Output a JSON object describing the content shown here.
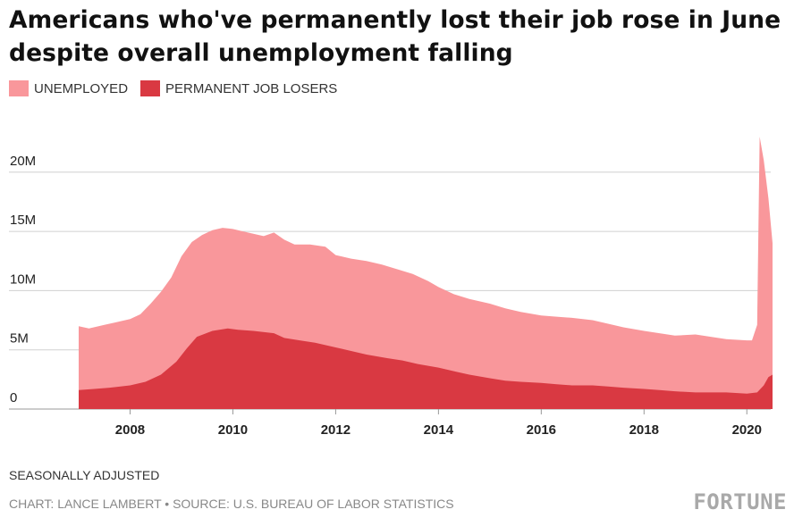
{
  "chart_data": {
    "type": "area",
    "title": "Americans who've permanently lost their job rose in June despite overall unemployment falling",
    "note": "SEASONALLY ADJUSTED",
    "source": "CHART: LANCE LAMBERT • SOURCE: U.S. BUREAU OF LABOR STATISTICS",
    "brand": "FORTUNE",
    "xlim": [
      2007,
      2020.5
    ],
    "ylim": [
      0,
      23
    ],
    "x_ticks": [
      {
        "value": 2008,
        "label": "2008"
      },
      {
        "value": 2010,
        "label": "2010"
      },
      {
        "value": 2012,
        "label": "2012"
      },
      {
        "value": 2014,
        "label": "2014"
      },
      {
        "value": 2016,
        "label": "2016"
      },
      {
        "value": 2018,
        "label": "2018"
      },
      {
        "value": 2020,
        "label": "2020"
      }
    ],
    "y_ticks": [
      {
        "value": 0,
        "label": "0"
      },
      {
        "value": 5,
        "label": "5M"
      },
      {
        "value": 10,
        "label": "10M"
      },
      {
        "value": 15,
        "label": "15M"
      },
      {
        "value": 20,
        "label": "20M"
      }
    ],
    "series": [
      {
        "name": "UNEMPLOYED",
        "color": "#f9979b",
        "x": [
          2007.0,
          2007.2,
          2007.5,
          2007.8,
          2008.0,
          2008.2,
          2008.4,
          2008.6,
          2008.8,
          2009.0,
          2009.2,
          2009.4,
          2009.6,
          2009.8,
          2010.0,
          2010.2,
          2010.4,
          2010.6,
          2010.8,
          2011.0,
          2011.2,
          2011.5,
          2011.8,
          2012.0,
          2012.3,
          2012.6,
          2012.9,
          2013.2,
          2013.5,
          2013.8,
          2014.0,
          2014.3,
          2014.6,
          2015.0,
          2015.3,
          2015.6,
          2016.0,
          2016.3,
          2016.6,
          2017.0,
          2017.3,
          2017.6,
          2018.0,
          2018.3,
          2018.6,
          2019.0,
          2019.3,
          2019.6,
          2020.0,
          2020.1,
          2020.2,
          2020.25,
          2020.33,
          2020.42,
          2020.5
        ],
        "values": [
          7.0,
          6.8,
          7.1,
          7.4,
          7.6,
          8.0,
          8.9,
          9.9,
          11.1,
          12.9,
          14.1,
          14.7,
          15.1,
          15.3,
          15.2,
          15.0,
          14.8,
          14.6,
          14.9,
          14.3,
          13.9,
          13.9,
          13.7,
          13.0,
          12.7,
          12.5,
          12.2,
          11.8,
          11.4,
          10.8,
          10.3,
          9.7,
          9.3,
          8.9,
          8.5,
          8.2,
          7.9,
          7.8,
          7.7,
          7.5,
          7.2,
          6.9,
          6.6,
          6.4,
          6.2,
          6.3,
          6.1,
          5.9,
          5.8,
          5.8,
          7.1,
          23.0,
          21.0,
          17.8,
          14.0
        ]
      },
      {
        "name": "PERMANENT JOB LOSERS",
        "color": "#d93942",
        "x": [
          2007.0,
          2007.3,
          2007.6,
          2008.0,
          2008.3,
          2008.6,
          2008.9,
          2009.1,
          2009.3,
          2009.6,
          2009.9,
          2010.1,
          2010.4,
          2010.8,
          2011.0,
          2011.3,
          2011.6,
          2012.0,
          2012.3,
          2012.6,
          2013.0,
          2013.3,
          2013.6,
          2014.0,
          2014.3,
          2014.6,
          2015.0,
          2015.3,
          2015.6,
          2016.0,
          2016.3,
          2016.6,
          2017.0,
          2017.3,
          2017.6,
          2018.0,
          2018.3,
          2018.6,
          2019.0,
          2019.3,
          2019.6,
          2020.0,
          2020.2,
          2020.33,
          2020.42,
          2020.5
        ],
        "values": [
          1.6,
          1.7,
          1.8,
          2.0,
          2.3,
          2.9,
          4.0,
          5.1,
          6.1,
          6.6,
          6.8,
          6.7,
          6.6,
          6.4,
          6.0,
          5.8,
          5.6,
          5.2,
          4.9,
          4.6,
          4.3,
          4.1,
          3.8,
          3.5,
          3.2,
          2.9,
          2.6,
          2.4,
          2.3,
          2.2,
          2.1,
          2.0,
          2.0,
          1.9,
          1.8,
          1.7,
          1.6,
          1.5,
          1.4,
          1.4,
          1.4,
          1.3,
          1.4,
          2.0,
          2.7,
          2.9
        ]
      }
    ]
  }
}
